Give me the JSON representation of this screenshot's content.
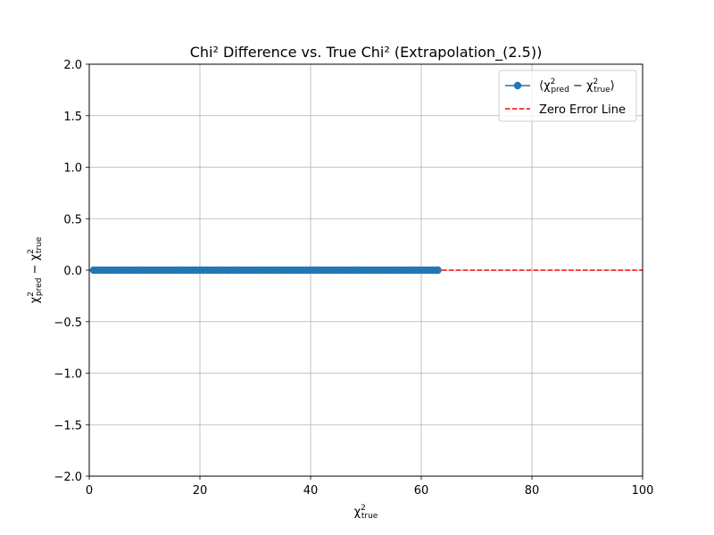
{
  "chart_data": {
    "type": "line",
    "title": "Chi² Difference vs. True Chi² (Extrapolation_(2.5))",
    "xlabel": {
      "base": "χ",
      "sup": "2",
      "sub": "true"
    },
    "ylabel": {
      "a_base": "χ",
      "a_sup": "2",
      "a_sub": "pred",
      "op": " − ",
      "b_base": "χ",
      "b_sup": "2",
      "b_sub": "true"
    },
    "xlim": [
      0,
      100
    ],
    "ylim": [
      -2.0,
      2.0
    ],
    "xticks": [
      "0",
      "20",
      "40",
      "60",
      "80",
      "100"
    ],
    "xtick_values": [
      0,
      20,
      40,
      60,
      80,
      100
    ],
    "yticks": [
      "−2.0",
      "−1.5",
      "−1.0",
      "−0.5",
      "0.0",
      "0.5",
      "1.0",
      "1.5",
      "2.0"
    ],
    "ytick_values": [
      -2.0,
      -1.5,
      -1.0,
      -0.5,
      0.0,
      0.5,
      1.0,
      1.5,
      2.0
    ],
    "grid": true,
    "legend_position": "top-right",
    "series": [
      {
        "kind": "line-marker",
        "legend": {
          "open": "⟨",
          "a_base": "χ",
          "a_sup": "2",
          "a_sub": "pred",
          "op": " − ",
          "b_base": "χ",
          "b_sup": "2",
          "b_sub": "true",
          "close": "⟩"
        },
        "color": "#1f77b4",
        "x": [
          0.8,
          1.4,
          2.0,
          2.6,
          3.2,
          3.8,
          4.4,
          5.0,
          5.6,
          6.2,
          6.8,
          7.4,
          8.0,
          8.6,
          9.2,
          9.8,
          10.4,
          11.0,
          11.6,
          12.2,
          12.8,
          13.4,
          14.0,
          14.6,
          15.2,
          15.8,
          16.4,
          17.0,
          17.6,
          18.2,
          18.8,
          19.4,
          20.0,
          20.6,
          21.2,
          21.8,
          22.4,
          23.0,
          23.6,
          24.2,
          24.8,
          25.4,
          26.0,
          26.6,
          27.2,
          27.8,
          28.4,
          29.0,
          29.6,
          30.2,
          30.8,
          31.4,
          32.0,
          32.6,
          33.2,
          33.8,
          34.4,
          35.0,
          35.6,
          36.2,
          36.8,
          37.4,
          38.0,
          38.6,
          39.2,
          39.8,
          40.4,
          41.0,
          41.6,
          42.2,
          42.8,
          43.4,
          44.0,
          44.6,
          45.2,
          45.8,
          46.4,
          47.0,
          47.6,
          48.2,
          48.8,
          49.4,
          50.0,
          50.6,
          51.2,
          51.8,
          52.4,
          53.0,
          53.6,
          54.2,
          54.8,
          55.4,
          56.0,
          56.6,
          57.2,
          57.8,
          58.4,
          59.0,
          59.6,
          60.2,
          60.8,
          61.4,
          62.0,
          62.6,
          63.0
        ],
        "y_constant": 0.0
      },
      {
        "kind": "dashed-line",
        "legend_text": "Zero Error Line",
        "color": "#ff0000",
        "x": [
          0,
          100
        ],
        "y": [
          0.0,
          0.0
        ]
      }
    ]
  }
}
